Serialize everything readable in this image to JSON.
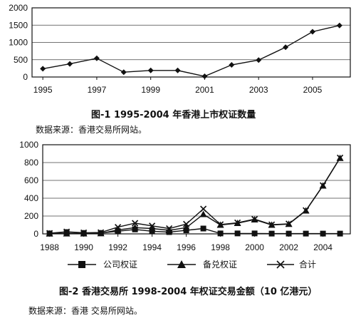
{
  "chart_data": [
    {
      "type": "line",
      "title": "图-1 1995-2004 年香港上市权证数量",
      "source": "数据来源：香港交易所网站。",
      "x": [
        1995,
        1996,
        1997,
        1998,
        1999,
        2000,
        2001,
        2002,
        2003,
        2004,
        2005,
        2006
      ],
      "series": [
        {
          "values": [
            240,
            380,
            540,
            140,
            190,
            190,
            20,
            350,
            490,
            860,
            1310,
            1490
          ],
          "color": "#111111",
          "marker": "diamond"
        }
      ],
      "xticks": [
        "1995",
        "1997",
        "1999",
        "2001",
        "2003",
        "2005"
      ],
      "yticks": [
        "0",
        "500",
        "1000",
        "1500",
        "2000"
      ],
      "ylim": [
        0,
        2000
      ],
      "grid": "horizontal"
    },
    {
      "type": "line",
      "title": "图-2  香港交易所 1998-2004 年权证交易金额（10 亿港元）",
      "source": "数据来源：香港 交易所网站。",
      "x": [
        1988,
        1989,
        1990,
        1991,
        1992,
        1993,
        1994,
        1995,
        1996,
        1997,
        1998,
        1999,
        2000,
        2001,
        2002,
        2003,
        2004,
        2005
      ],
      "series": [
        {
          "name": "公司权证",
          "values": [
            5,
            20,
            10,
            10,
            30,
            50,
            30,
            20,
            40,
            60,
            5,
            5,
            5,
            3,
            3,
            3,
            3,
            3
          ],
          "color": "#111111",
          "marker": "square"
        },
        {
          "name": "备兑权证",
          "values": [
            2,
            3,
            3,
            5,
            45,
            70,
            60,
            40,
            70,
            220,
            100,
            120,
            160,
            100,
            110,
            260,
            540,
            850
          ],
          "color": "#111111",
          "marker": "triangle"
        },
        {
          "name": "合计",
          "values": [
            7,
            23,
            13,
            15,
            75,
            120,
            90,
            60,
            110,
            280,
            105,
            125,
            165,
            103,
            113,
            263,
            543,
            853
          ],
          "color": "#111111",
          "marker": "x"
        }
      ],
      "xticks": [
        "1988",
        "1990",
        "1992",
        "1994",
        "1996",
        "1998",
        "2000",
        "2002",
        "2004"
      ],
      "yticks": [
        "0",
        "200",
        "400",
        "600",
        "800",
        "1000"
      ],
      "ylim": [
        0,
        1000
      ],
      "grid": "horizontal",
      "legend": "bottom"
    }
  ]
}
